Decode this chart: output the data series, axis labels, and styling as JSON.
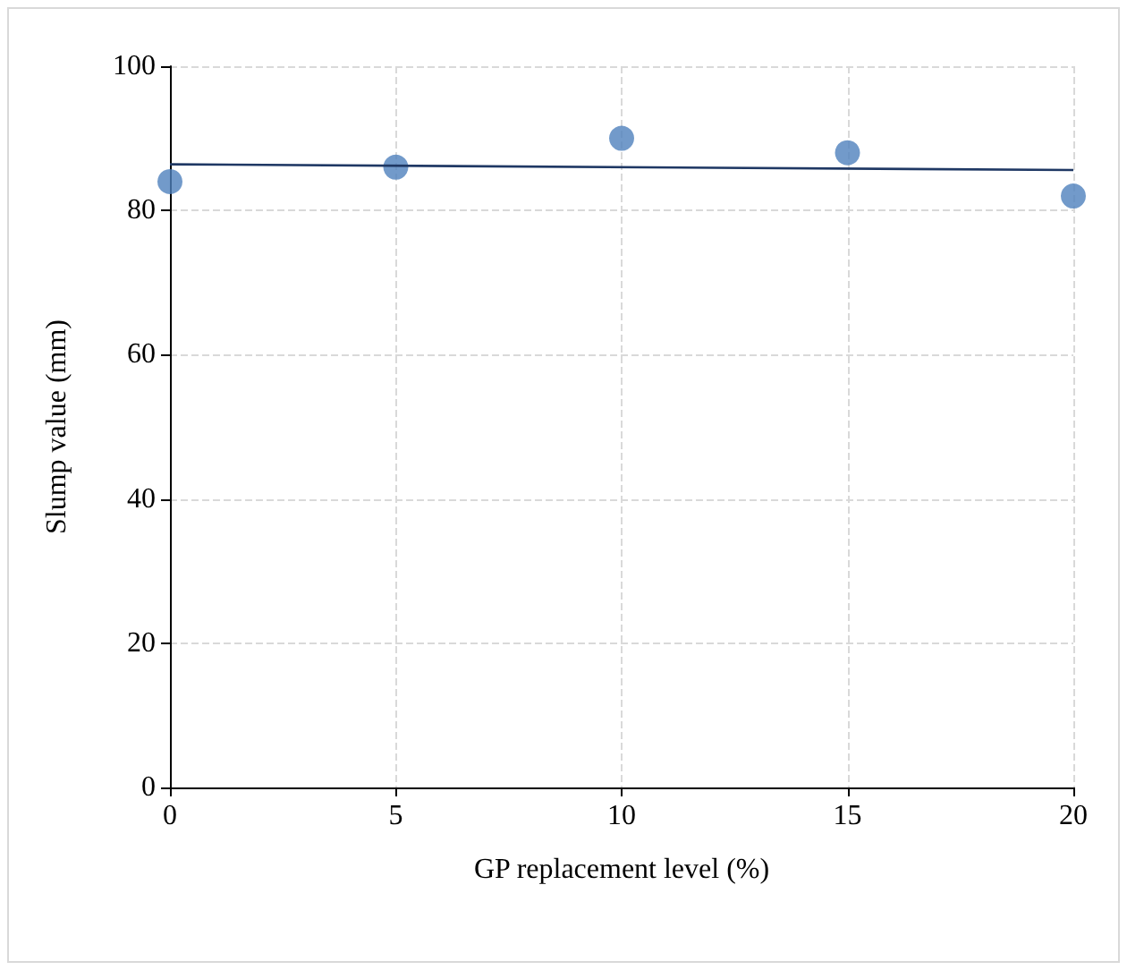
{
  "chart_data": {
    "type": "scatter",
    "xlabel": "GP replacement level (%)",
    "ylabel": "Slump value (mm)",
    "x": [
      0,
      5,
      10,
      15,
      20
    ],
    "series": [
      {
        "color": "#4f81bd",
        "values": [
          84,
          86,
          90,
          88,
          82
        ]
      },
      {
        "type": "line",
        "color": "#1f3864",
        "x": [
          0,
          20
        ],
        "values": [
          86.4,
          85.6
        ],
        "marker": "none"
      }
    ],
    "xlim": [
      0,
      20
    ],
    "xticks": [
      0,
      5,
      10,
      15,
      20
    ],
    "ylim": [
      0,
      100
    ],
    "yticks": [
      0,
      20,
      40,
      60,
      80,
      100
    ],
    "grid": true,
    "marker": "circle"
  }
}
